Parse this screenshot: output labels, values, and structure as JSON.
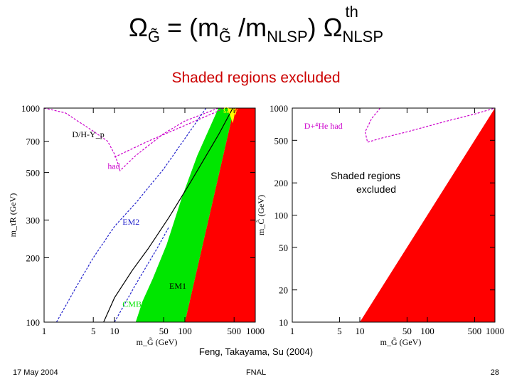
{
  "slide": {
    "title": {
      "omega": "Ω",
      "g_sub": "G̃",
      "eq": " = (m",
      "g_sub2": "G̃",
      "slash": " /m",
      "nlsp_sub": "NLSP",
      "close": ") Ω",
      "th_sup": "th",
      "nlsp_sub2": "NLSP"
    },
    "subtitle": "Shaded regions excluded",
    "citation": "Feng, Takayama, Su (2004)",
    "footer": {
      "date": "17 May 2004",
      "venue": "FNAL",
      "page": "28"
    }
  },
  "colors": {
    "green": "#00e600",
    "red": "#ff0000",
    "yellow": "#ffff00",
    "magenta": "#cc00cc",
    "blue": "#2222cc",
    "title_red": "#cc0000"
  },
  "chart_data": [
    {
      "type": "area",
      "panel": "left",
      "x_scale": "log",
      "y_scale": "log",
      "xlim": [
        1,
        1000
      ],
      "ylim": [
        100,
        1000
      ],
      "xlabel": "m_G̃ (GeV)",
      "ylabel": "m_τ̃R (GeV)",
      "x_tick_labels": [
        "1",
        "5",
        "10",
        "50",
        "100",
        "500",
        "1000"
      ],
      "x_ticks": [
        1,
        5,
        10,
        50,
        100,
        500,
        1000
      ],
      "y_tick_labels": [
        "100",
        "200",
        "300",
        "500",
        "700",
        "1000"
      ],
      "y_ticks": [
        100,
        200,
        300,
        500,
        700,
        1000
      ],
      "regions": [
        {
          "name": "excluded-red",
          "color": "red",
          "points": [
            [
              100,
              100
            ],
            [
              1000,
              100
            ],
            [
              1000,
              1000
            ],
            [
              500,
              1000
            ]
          ]
        },
        {
          "name": "excluded-green",
          "color": "green",
          "points": [
            [
              20,
              100
            ],
            [
              100,
              100
            ],
            [
              500,
              1000
            ],
            [
              300,
              1000
            ],
            [
              150,
              600
            ],
            [
              90,
              380
            ],
            [
              55,
              230
            ],
            [
              35,
              160
            ],
            [
              25,
              125
            ]
          ]
        },
        {
          "name": "excluded-yellow",
          "color": "yellow",
          "points": [
            [
              400,
              1000
            ],
            [
              530,
              1000
            ],
            [
              480,
              850
            ]
          ]
        }
      ],
      "curves": [
        {
          "name": "D/H-Yp",
          "color": "magenta",
          "points": [
            [
              10,
              590
            ],
            [
              30,
              700
            ],
            [
              100,
              830
            ],
            [
              300,
              970
            ],
            [
              350,
              1000
            ]
          ]
        },
        {
          "name": "had",
          "color": "magenta",
          "points": [
            [
              1,
              1000
            ],
            [
              2,
              950
            ],
            [
              3,
              870
            ],
            [
              5,
              780
            ],
            [
              8,
              700
            ],
            [
              10,
              610
            ],
            [
              11,
              560
            ],
            [
              12,
              510
            ],
            [
              20,
              600
            ],
            [
              50,
              760
            ],
            [
              100,
              870
            ],
            [
              200,
              950
            ],
            [
              300,
              1000
            ]
          ]
        },
        {
          "name": "EM2",
          "color": "blue",
          "points": [
            [
              1.5,
              100
            ],
            [
              3,
              150
            ],
            [
              5,
              200
            ],
            [
              10,
              280
            ],
            [
              20,
              360
            ],
            [
              50,
              520
            ],
            [
              100,
              720
            ],
            [
              200,
              1000
            ]
          ]
        },
        {
          "name": "EM1",
          "color": "black",
          "points": [
            [
              7,
              100
            ],
            [
              10,
              130
            ],
            [
              18,
              175
            ],
            [
              30,
              220
            ],
            [
              60,
              310
            ],
            [
              120,
              450
            ],
            [
              300,
              750
            ],
            [
              480,
              1000
            ]
          ]
        },
        {
          "name": "CMB",
          "color": "blue",
          "points": [
            [
              10,
              100
            ],
            [
              20,
              150
            ],
            [
              40,
              220
            ],
            [
              60,
              280
            ]
          ]
        }
      ],
      "annotations": [
        {
          "text": "D/H-Y_p",
          "x": 2.5,
          "y": 730,
          "color": "black"
        },
        {
          "text": "had",
          "x": 8,
          "y": 520,
          "color": "magenta"
        },
        {
          "text": "EM2",
          "x": 13,
          "y": 285,
          "color": "blue"
        },
        {
          "text": "EM1",
          "x": 60,
          "y": 143,
          "color": "black"
        },
        {
          "text": "CMB",
          "x": 13,
          "y": 118,
          "color": "green"
        },
        {
          "text": "Ω_γ",
          "x": 350,
          "y": 950,
          "color": "yellow"
        }
      ]
    },
    {
      "type": "area",
      "panel": "right",
      "x_scale": "log",
      "y_scale": "log",
      "xlim": [
        1,
        1000
      ],
      "ylim": [
        10,
        1000
      ],
      "xlabel": "m_G̃ (GeV)",
      "ylabel": "m_C̃ (GeV)",
      "x_tick_labels": [
        "1",
        "5",
        "10",
        "50",
        "100",
        "500",
        "1000"
      ],
      "x_ticks": [
        1,
        5,
        10,
        50,
        100,
        500,
        1000
      ],
      "y_tick_labels": [
        "10",
        "20",
        "50",
        "100",
        "200",
        "500",
        "1000"
      ],
      "y_ticks": [
        10,
        20,
        50,
        100,
        200,
        500,
        1000
      ],
      "regions": [
        {
          "name": "excluded-red",
          "color": "red",
          "points": [
            [
              10,
              10
            ],
            [
              1000,
              10
            ],
            [
              1000,
              1000
            ]
          ]
        }
      ],
      "curves": [
        {
          "name": "D+4He had",
          "color": "magenta",
          "points": [
            [
              20,
              1000
            ],
            [
              15,
              800
            ],
            [
              12,
              600
            ],
            [
              13,
              480
            ],
            [
              20,
              520
            ],
            [
              50,
              600
            ],
            [
              200,
              760
            ],
            [
              500,
              880
            ],
            [
              1000,
              1000
            ]
          ]
        }
      ],
      "annotations": [
        {
          "text": "D+⁴He had",
          "x": 1.5,
          "y": 640,
          "color": "magenta"
        }
      ],
      "inset_label": "Shaded regions excluded"
    }
  ]
}
